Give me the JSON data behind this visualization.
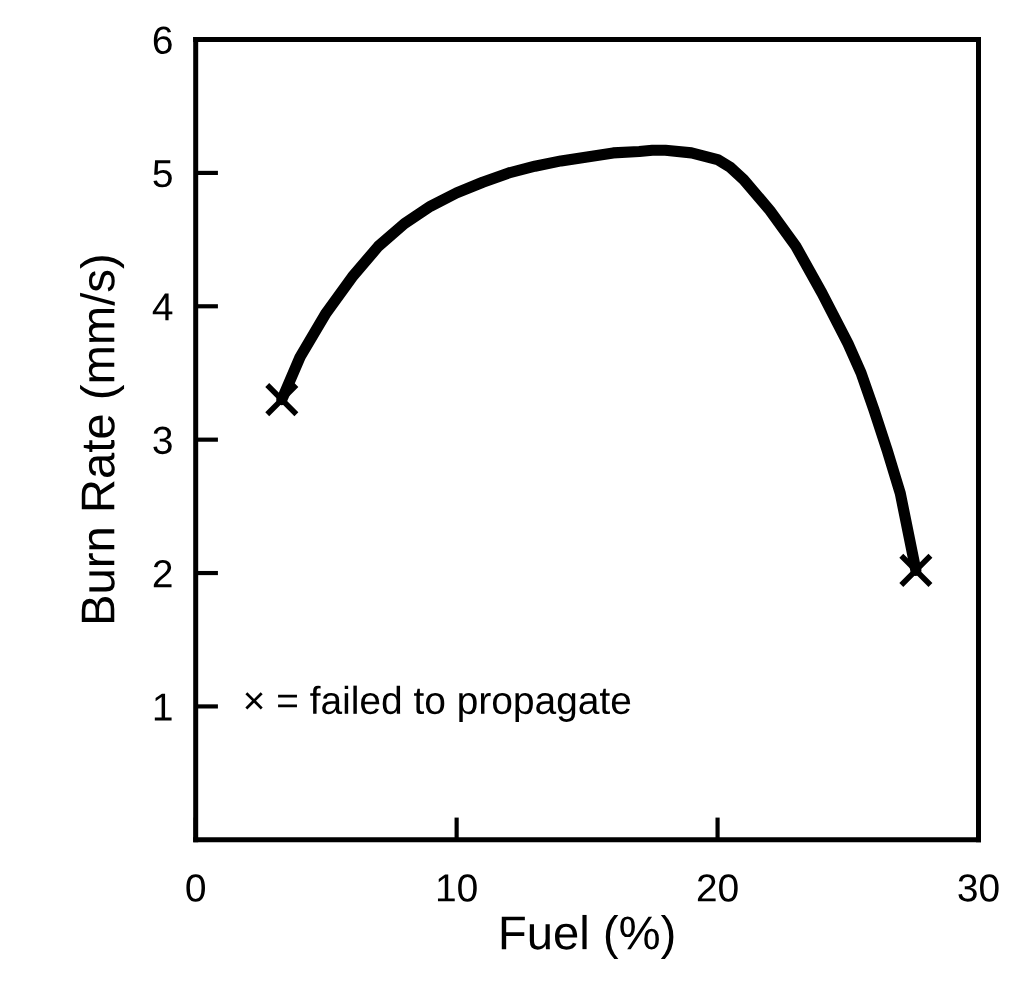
{
  "chart_data": {
    "type": "line",
    "xlabel": "Fuel (%)",
    "ylabel": "Burn Rate (mm/s)",
    "xlim": [
      0,
      30
    ],
    "ylim": [
      0,
      6
    ],
    "xticks": [
      0,
      10,
      20,
      30
    ],
    "yticks": [
      1,
      2,
      3,
      4,
      5,
      6
    ],
    "grid": false,
    "legend": false,
    "series": [
      {
        "color": "#000000",
        "marker": "none",
        "x": [
          3.3,
          4,
          5,
          6,
          7,
          8,
          9,
          10,
          11,
          12,
          13,
          14,
          15,
          16,
          17,
          17.5,
          18,
          19,
          20,
          20.5,
          21,
          22,
          23,
          24,
          25,
          25.5,
          26,
          26.5,
          27,
          27.6
        ],
        "values": [
          3.3,
          3.62,
          3.95,
          4.22,
          4.45,
          4.62,
          4.75,
          4.85,
          4.93,
          5.0,
          5.05,
          5.09,
          5.12,
          5.15,
          5.16,
          5.17,
          5.17,
          5.15,
          5.1,
          5.04,
          4.95,
          4.72,
          4.45,
          4.1,
          3.72,
          3.5,
          3.22,
          2.92,
          2.6,
          2.02
        ]
      },
      {
        "type": "scatter",
        "color": "#000000",
        "marker": "cross",
        "x": [
          3.3,
          27.6
        ],
        "values": [
          3.3,
          2.02
        ]
      }
    ],
    "annotations": [
      "× = failed to propagate"
    ]
  }
}
